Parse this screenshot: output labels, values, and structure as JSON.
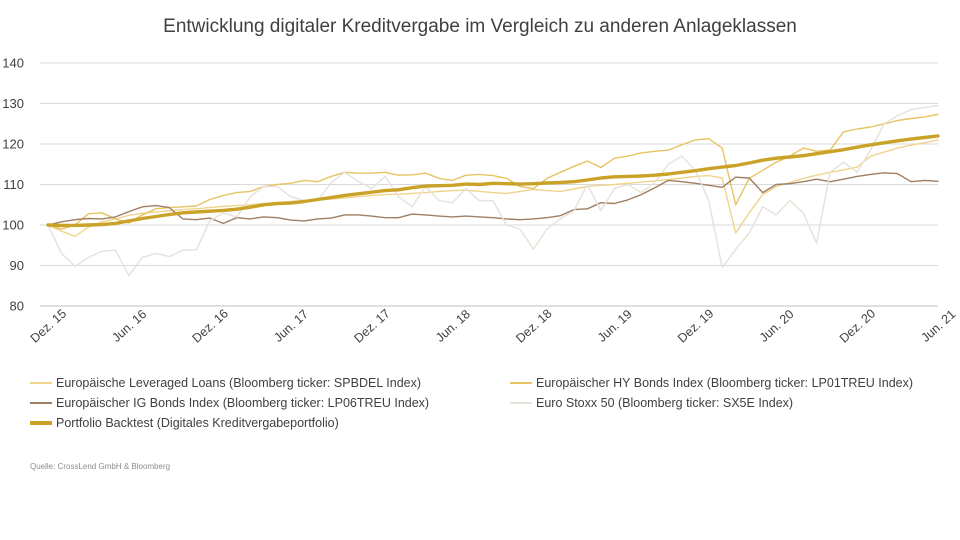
{
  "chart_data": {
    "type": "line",
    "title": "Entwicklung digitaler Kreditvergabe im Vergleich zu anderen Anlageklassen",
    "ylim": [
      80,
      140
    ],
    "yticks": [
      80,
      90,
      100,
      110,
      120,
      130,
      140
    ],
    "grid": true,
    "legend_position": "bottom",
    "x_tick_labels": [
      "Dez. 15",
      "Jun. 16",
      "Dez. 16",
      "Jun. 17",
      "Dez. 17",
      "Jun. 18",
      "Dez. 18",
      "Jun. 19",
      "Dez. 19",
      "Jun. 20",
      "Dez. 20",
      "Jun. 21"
    ],
    "x": [
      "2015-12",
      "2016-01",
      "2016-02",
      "2016-03",
      "2016-04",
      "2016-05",
      "2016-06",
      "2016-07",
      "2016-08",
      "2016-09",
      "2016-10",
      "2016-11",
      "2016-12",
      "2017-01",
      "2017-02",
      "2017-03",
      "2017-04",
      "2017-05",
      "2017-06",
      "2017-07",
      "2017-08",
      "2017-09",
      "2017-10",
      "2017-11",
      "2017-12",
      "2018-01",
      "2018-02",
      "2018-03",
      "2018-04",
      "2018-05",
      "2018-06",
      "2018-07",
      "2018-08",
      "2018-09",
      "2018-10",
      "2018-11",
      "2018-12",
      "2019-01",
      "2019-02",
      "2019-03",
      "2019-04",
      "2019-05",
      "2019-06",
      "2019-07",
      "2019-08",
      "2019-09",
      "2019-10",
      "2019-11",
      "2019-12",
      "2020-01",
      "2020-02",
      "2020-03",
      "2020-04",
      "2020-05",
      "2020-06",
      "2020-07",
      "2020-08",
      "2020-09",
      "2020-10",
      "2020-11",
      "2020-12",
      "2021-01",
      "2021-02",
      "2021-03",
      "2021-04",
      "2021-05",
      "2021-06"
    ],
    "series": [
      {
        "name": "Europäische Leveraged Loans (Bloomberg ticker:  SPBDEL Index)",
        "color": "#f0d48c",
        "width": 1.4,
        "values": [
          100,
          98.5,
          97.2,
          99.5,
          100.8,
          101.5,
          102.4,
          102.9,
          103.2,
          103.5,
          103.8,
          104.0,
          104.3,
          104.6,
          104.8,
          105.0,
          105.3,
          105.5,
          105.8,
          106.0,
          106.2,
          106.4,
          106.7,
          107.0,
          107.3,
          107.5,
          107.6,
          107.8,
          108.0,
          108.3,
          108.5,
          108.6,
          108.3,
          108.0,
          107.8,
          108.3,
          108.8,
          108.5,
          108.3,
          108.9,
          109.5,
          109.8,
          110.0,
          110.3,
          110.6,
          110.9,
          111.2,
          111.6,
          112.0,
          112.2,
          111.6,
          98.0,
          103.0,
          107.5,
          109.5,
          110.5,
          111.5,
          112.3,
          113.0,
          113.6,
          114.3,
          117.0,
          118.0,
          119.0,
          119.7,
          120.3,
          121.0
        ]
      },
      {
        "name": "Europäischer HY Bonds Index (Bloomberg ticker: LP01TREU Index)",
        "color": "#e8c361",
        "width": 1.4,
        "values": [
          100,
          99.0,
          100.0,
          102.8,
          103.0,
          101.5,
          100.5,
          102.5,
          104.0,
          104.3,
          104.5,
          104.7,
          106.3,
          107.3,
          108.0,
          108.3,
          109.5,
          110.0,
          110.3,
          111.0,
          110.7,
          112.0,
          113.0,
          112.8,
          112.8,
          113.0,
          112.3,
          112.4,
          112.8,
          111.5,
          111.0,
          112.3,
          112.5,
          112.2,
          111.5,
          109.5,
          109.0,
          111.5,
          113.0,
          114.5,
          115.8,
          114.2,
          116.5,
          117.0,
          117.8,
          118.2,
          118.5,
          119.8,
          121.0,
          121.3,
          119.0,
          105.0,
          111.5,
          113.5,
          115.5,
          117.0,
          119.0,
          118.2,
          118.5,
          123.0,
          123.7,
          124.2,
          125.0,
          125.8,
          126.3,
          126.7,
          127.3
        ]
      },
      {
        "name": "Europäischer IG Bonds Index (Bloomberg ticker: LP06TREU Index)",
        "color": "#9e7f63",
        "width": 1.4,
        "values": [
          100,
          100.8,
          101.3,
          101.6,
          101.5,
          102.0,
          103.3,
          104.5,
          104.8,
          104.3,
          101.5,
          101.3,
          101.7,
          100.4,
          101.8,
          101.5,
          102.0,
          101.8,
          101.2,
          101.0,
          101.5,
          101.7,
          102.5,
          102.5,
          102.2,
          101.8,
          101.8,
          102.7,
          102.5,
          102.2,
          102.0,
          102.2,
          102.0,
          101.8,
          101.5,
          101.3,
          101.5,
          101.8,
          102.3,
          103.8,
          104.0,
          105.5,
          105.3,
          106.2,
          107.5,
          109.2,
          111.0,
          110.7,
          110.3,
          109.8,
          109.3,
          111.8,
          111.6,
          108.0,
          110.0,
          110.2,
          110.7,
          111.3,
          110.7,
          111.3,
          112.0,
          112.5,
          112.9,
          112.7,
          110.7,
          111.0,
          110.8
        ]
      },
      {
        "name": "Euro Stoxx 50 (Bloomberg ticker: SX5E Index)",
        "color": "#e6e1da",
        "width": 1.4,
        "values": [
          100,
          93.0,
          89.8,
          92.0,
          93.5,
          93.8,
          87.5,
          92.0,
          93.0,
          92.2,
          93.8,
          93.8,
          101.0,
          103.0,
          102.0,
          107.0,
          109.5,
          109.5,
          107.0,
          106.0,
          106.0,
          110.5,
          113.0,
          110.8,
          109.0,
          112.0,
          107.0,
          104.5,
          109.5,
          106.0,
          105.5,
          109.0,
          106.0,
          106.0,
          100.0,
          99.0,
          94.0,
          99.0,
          101.5,
          103.5,
          110.0,
          103.5,
          109.0,
          110.0,
          108.0,
          110.5,
          115.0,
          117.0,
          113.5,
          106.0,
          89.5,
          94.0,
          98.0,
          104.5,
          102.5,
          106.0,
          103.0,
          95.5,
          113.0,
          115.5,
          113.0,
          118.5,
          125.0,
          127.0,
          128.5,
          129.0,
          129.5
        ]
      },
      {
        "name": "Portfolio Backtest (Digitales Kreditvergabeportfolio)",
        "color": "#c9a227",
        "width": 3.4,
        "values": [
          100,
          99.9,
          99.9,
          100.0,
          100.1,
          100.4,
          101.0,
          101.6,
          102.1,
          102.6,
          103.0,
          103.2,
          103.4,
          103.6,
          103.9,
          104.4,
          105.0,
          105.3,
          105.4,
          105.8,
          106.3,
          106.8,
          107.3,
          107.7,
          108.1,
          108.5,
          108.7,
          109.2,
          109.6,
          109.7,
          109.8,
          110.1,
          110.0,
          110.3,
          110.2,
          110.1,
          110.2,
          110.4,
          110.5,
          110.7,
          111.1,
          111.6,
          111.9,
          112.0,
          112.1,
          112.3,
          112.6,
          113.0,
          113.4,
          113.9,
          114.3,
          114.7,
          115.3,
          116.0,
          116.5,
          116.8,
          117.1,
          117.6,
          118.1,
          118.6,
          119.2,
          119.8,
          120.3,
          120.8,
          121.2,
          121.6,
          122.0
        ]
      }
    ]
  },
  "legend": [
    {
      "label": "Europäische Leveraged Loans (Bloomberg ticker:  SPBDEL Index)",
      "color": "#f0d48c",
      "thickness": "thin"
    },
    {
      "label": "Europäischer HY Bonds Index (Bloomberg ticker: LP01TREU Index)",
      "color": "#e8c361",
      "thickness": "thin"
    },
    {
      "label": "Europäischer IG Bonds Index (Bloomberg ticker: LP06TREU Index)",
      "color": "#9e7f63",
      "thickness": "thin"
    },
    {
      "label": "Euro Stoxx 50 (Bloomberg ticker: SX5E Index)",
      "color": "#e6e1da",
      "thickness": "thin"
    },
    {
      "label": "Portfolio Backtest (Digitales Kreditvergabeportfolio)",
      "color": "#c9a227",
      "thickness": "thick"
    }
  ],
  "source": "Quelle: CrossLend GmbH & Bloomberg"
}
